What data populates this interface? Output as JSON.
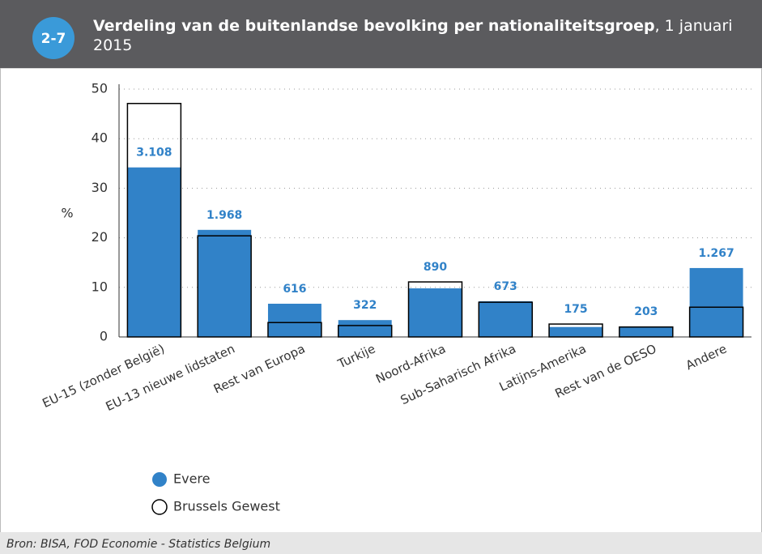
{
  "chart_data": {
    "type": "bar",
    "badge": "2-7",
    "title": "Verdeling van de buitenlandse bevolking per nationaliteitsgroep",
    "subtitle": ", 1 januari 2015",
    "ylabel": "%",
    "source": "Bron: BISA, FOD Economie - Statistics Belgium",
    "categories": [
      "EU-15 (zonder België)",
      "EU-13 nieuwe lidstaten",
      "Rest van Europa",
      "Turkije",
      "Noord-Afrika",
      "Sub-Saharisch Afrika",
      "Latijns-Amerika",
      "Rest van de OESO",
      "Andere"
    ],
    "series": [
      {
        "name": "Evere",
        "color": "#3182c8",
        "values": [
          34.2,
          21.6,
          6.7,
          3.4,
          9.8,
          7.2,
          2.0,
          2.1,
          13.9
        ],
        "labels": [
          "3.108",
          "1.968",
          "616",
          "322",
          "890",
          "673",
          "175",
          "203",
          "1.267"
        ]
      },
      {
        "name": "Brussels Gewest",
        "color": "none",
        "values": [
          47.1,
          20.4,
          2.9,
          2.3,
          11.1,
          7.0,
          2.6,
          2.0,
          6.0
        ]
      }
    ],
    "ylim": [
      0,
      50
    ],
    "yticks": [
      0,
      10,
      20,
      30,
      40,
      50
    ],
    "grid": true
  }
}
